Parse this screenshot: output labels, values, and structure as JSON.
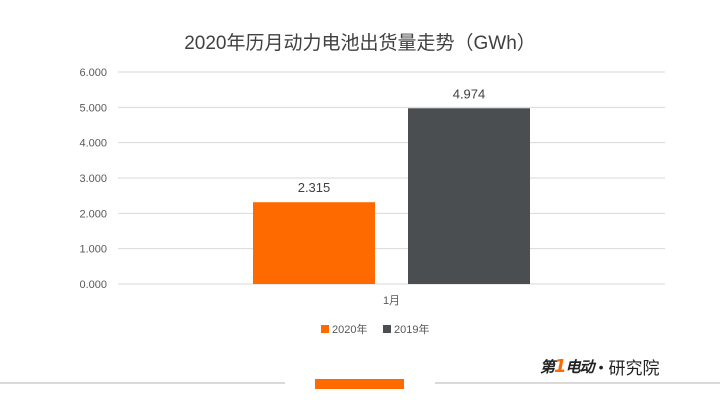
{
  "chart_data": {
    "type": "bar",
    "title": "2020年历月动力电池出货量走势（GWh）",
    "categories": [
      "1月"
    ],
    "series": [
      {
        "name": "2020年",
        "values": [
          2.315
        ],
        "color": "#ff6a00"
      },
      {
        "name": "2019年",
        "values": [
          4.974
        ],
        "color": "#4b4e50"
      }
    ],
    "ylim": [
      0,
      6
    ],
    "yticks": [
      "0.000",
      "1.000",
      "2.000",
      "3.000",
      "4.000",
      "5.000",
      "6.000"
    ],
    "data_labels": [
      "2.315",
      "4.974"
    ],
    "grid": true,
    "legend": "bottom"
  },
  "brand": {
    "logo_prefix": "第",
    "logo_one": "1",
    "logo_suffix": "电动",
    "dot": "•",
    "text": "研究院"
  },
  "colors": {
    "accent": "#ff6a00",
    "dark": "#4b4e50",
    "grid": "#d9d9d9"
  }
}
